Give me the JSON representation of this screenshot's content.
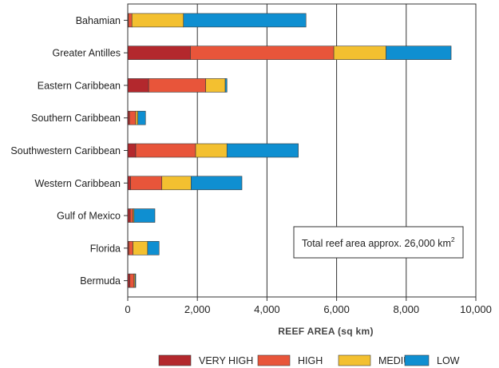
{
  "chart_data": {
    "type": "bar",
    "orientation": "horizontal",
    "stacked": true,
    "categories": [
      "Bahamian",
      "Greater Antilles",
      "Eastern Caribbean",
      "Southern Caribbean",
      "Southwestern Caribbean",
      "Western Caribbean",
      "Gulf of Mexico",
      "Florida",
      "Bermuda"
    ],
    "series": [
      {
        "name": "VERY HIGH",
        "color": "#b3282d",
        "values": [
          20,
          1800,
          600,
          50,
          230,
          80,
          70,
          30,
          60
        ]
      },
      {
        "name": "HIGH",
        "color": "#e8553a",
        "values": [
          100,
          4120,
          1640,
          180,
          1720,
          900,
          80,
          120,
          120
        ]
      },
      {
        "name": "MEDIUM",
        "color": "#f3c030",
        "values": [
          1480,
          1500,
          560,
          60,
          900,
          840,
          30,
          420,
          30
        ]
      },
      {
        "name": "LOW",
        "color": "#0f8fd1",
        "values": [
          3520,
          1870,
          50,
          220,
          2050,
          1460,
          600,
          330,
          20
        ]
      }
    ],
    "xlabel": "REEF AREA (sq km)",
    "ylabel": "",
    "xlim": [
      0,
      10000
    ],
    "xticks": [
      0,
      2000,
      4000,
      6000,
      8000,
      10000
    ],
    "xtick_labels": [
      "0",
      "2,000",
      "4,000",
      "6,000",
      "8,000",
      "10,000"
    ],
    "grid": "vertical",
    "legend_position": "bottom",
    "annotation": {
      "text": "Total reef area approx. 26,000 km",
      "superscript": "2"
    }
  }
}
